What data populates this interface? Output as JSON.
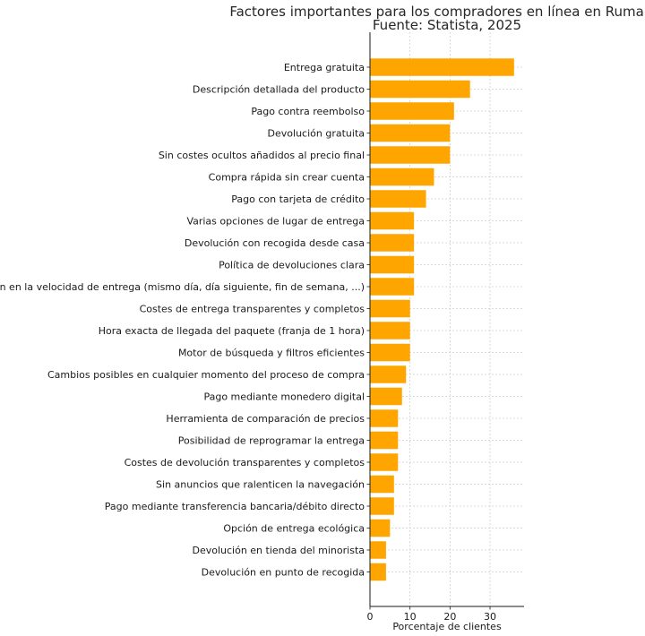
{
  "chart_data": {
    "type": "bar",
    "orientation": "horizontal",
    "title": "Factores importantes para los compradores en línea en Rumanía",
    "subtitle": "Fuente: Statista, 2025",
    "xlabel": "Porcentaje de clientes",
    "ylabel": "",
    "xlim": [
      0,
      38.5
    ],
    "xticks": [
      0,
      10,
      20,
      30
    ],
    "grid": true,
    "bar_color": "#FFA500",
    "categories": [
      "Entrega gratuita",
      "Descripción detallada del producto",
      "Pago contra reembolso",
      "Devolución gratuita",
      "Sin costes ocultos añadidos al precio final",
      "Compra rápida sin crear cuenta",
      "Pago con tarjeta de crédito",
      "Varias opciones de lugar de entrega",
      "Devolución con recogida desde casa",
      "Política de devoluciones clara",
      "Elección en la velocidad de entrega (mismo día, día siguiente, fin de semana, ...)",
      "Costes de entrega transparentes y completos",
      "Hora exacta de llegada del paquete (franja de 1 hora)",
      "Motor de búsqueda y filtros eficientes",
      "Cambios posibles en cualquier momento del proceso de compra",
      "Pago mediante monedero digital",
      "Herramienta de comparación de precios",
      "Posibilidad de reprogramar la entrega",
      "Costes de devolución transparentes y completos",
      "Sin anuncios que ralenticen la navegación",
      "Pago mediante transferencia bancaria/débito directo",
      "Opción de entrega ecológica",
      "Devolución en tienda del minorista",
      "Devolución en punto de recogida"
    ],
    "values": [
      36,
      25,
      21,
      20,
      20,
      16,
      14,
      11,
      11,
      11,
      11,
      10,
      10,
      10,
      9,
      8,
      7,
      7,
      7,
      6,
      6,
      5,
      4,
      4
    ]
  }
}
